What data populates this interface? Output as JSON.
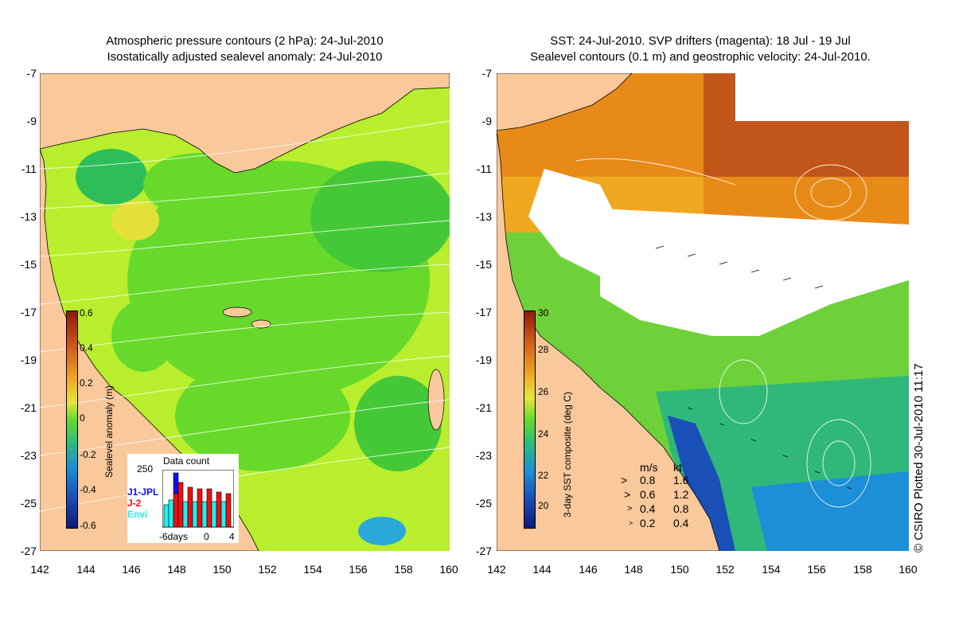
{
  "left_panel": {
    "title_line1": "Atmospheric pressure contours (2 hPa): 24-Jul-2010",
    "title_line2": "Isostatically adjusted sealevel anomaly: 24-Jul-2010",
    "colorbar": {
      "label": "Sealevel anomaly (m)",
      "ticks": [
        "0.6",
        "0.4",
        "0.2",
        "0",
        "-0.2",
        "-0.4",
        "-0.6"
      ]
    },
    "data_count": {
      "title": "Data count",
      "ymax_label": "250",
      "x_labels": [
        "-6days",
        "0",
        "4"
      ],
      "legend": [
        {
          "name": "J1-JPL",
          "color": "#1010ee"
        },
        {
          "name": "J-2",
          "color": "#ee1010"
        },
        {
          "name": "Envi",
          "color": "#20f0f0"
        }
      ]
    }
  },
  "right_panel": {
    "title_line1": "SST: 24-Jul-2010. SVP drifters (magenta): 18 Jul - 19 Jul",
    "title_line2": "Sealevel contours (0.1 m) and geostrophic velocity: 24-Jul-2010.",
    "colorbar": {
      "label": "3-day SST composite (deg C)",
      "ticks": [
        "30",
        "28",
        "26",
        "24",
        "22",
        "20"
      ]
    },
    "speed_legend": {
      "header_ms": "m/s",
      "header_kt": "kt",
      "rows": [
        {
          "ms": "0.8",
          "kt": "1.6"
        },
        {
          "ms": "0.6",
          "kt": "1.2"
        },
        {
          "ms": "0.4",
          "kt": "0.8"
        },
        {
          "ms": "0.2",
          "kt": "0.4"
        }
      ]
    },
    "credit": "© CSIRO Plotted 30-Jul-2010 11:17"
  },
  "axes": {
    "lat_ticks": [
      "-7",
      "-9",
      "-11",
      "-13",
      "-15",
      "-17",
      "-19",
      "-21",
      "-23",
      "-25",
      "-27"
    ],
    "lon_ticks": [
      "142",
      "144",
      "146",
      "148",
      "150",
      "152",
      "154",
      "156",
      "158",
      "160"
    ]
  },
  "colors": {
    "land": "#f9c89b",
    "ocean_green": "#66d92a",
    "yellow_green": "#b8ee2e",
    "cloud_white": "#ffffff",
    "sst_orange": "#e88a18",
    "sst_red": "#b84a10",
    "sst_cool": "#1c8fd6"
  }
}
